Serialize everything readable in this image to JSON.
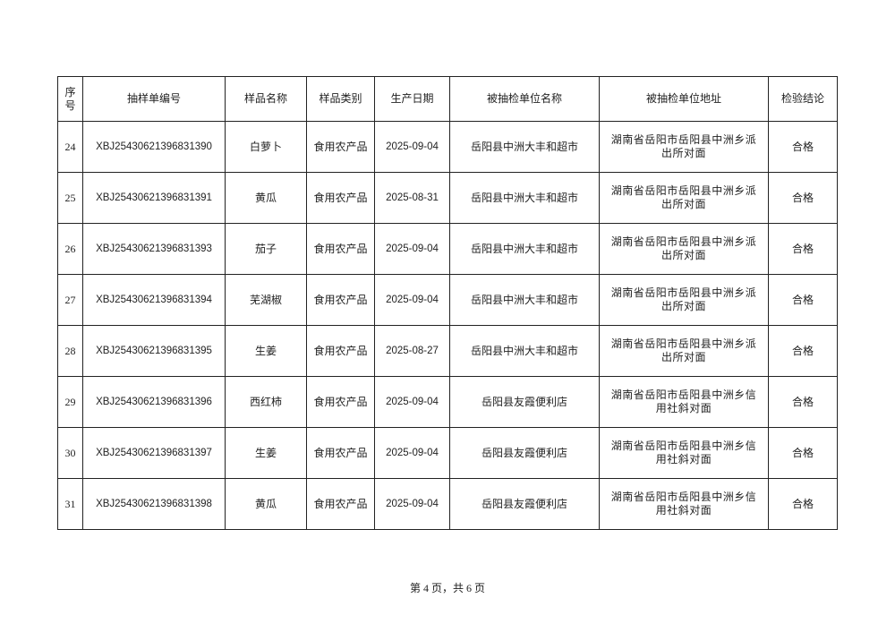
{
  "table": {
    "headers": [
      "序号",
      "抽样单编号",
      "样品名称",
      "样品类别",
      "生产日期",
      "被抽检单位名称",
      "被抽检单位地址",
      "检验结论"
    ],
    "rows": [
      [
        "24",
        "XBJ25430621396831390",
        "白萝卜",
        "食用农产品",
        "2025-09-04",
        "岳阳县中洲大丰和超市",
        "湖南省岳阳市岳阳县中洲乡派出所对面",
        "合格"
      ],
      [
        "25",
        "XBJ25430621396831391",
        "黄瓜",
        "食用农产品",
        "2025-08-31",
        "岳阳县中洲大丰和超市",
        "湖南省岳阳市岳阳县中洲乡派出所对面",
        "合格"
      ],
      [
        "26",
        "XBJ25430621396831393",
        "茄子",
        "食用农产品",
        "2025-09-04",
        "岳阳县中洲大丰和超市",
        "湖南省岳阳市岳阳县中洲乡派出所对面",
        "合格"
      ],
      [
        "27",
        "XBJ25430621396831394",
        "芜湖椒",
        "食用农产品",
        "2025-09-04",
        "岳阳县中洲大丰和超市",
        "湖南省岳阳市岳阳县中洲乡派出所对面",
        "合格"
      ],
      [
        "28",
        "XBJ25430621396831395",
        "生姜",
        "食用农产品",
        "2025-08-27",
        "岳阳县中洲大丰和超市",
        "湖南省岳阳市岳阳县中洲乡派出所对面",
        "合格"
      ],
      [
        "29",
        "XBJ25430621396831396",
        "西红柿",
        "食用农产品",
        "2025-09-04",
        "岳阳县友霞便利店",
        "湖南省岳阳市岳阳县中洲乡信用社斜对面",
        "合格"
      ],
      [
        "30",
        "XBJ25430621396831397",
        "生姜",
        "食用农产品",
        "2025-09-04",
        "岳阳县友霞便利店",
        "湖南省岳阳市岳阳县中洲乡信用社斜对面",
        "合格"
      ],
      [
        "31",
        "XBJ25430621396831398",
        "黄瓜",
        "食用农产品",
        "2025-09-04",
        "岳阳县友霞便利店",
        "湖南省岳阳市岳阳县中洲乡信用社斜对面",
        "合格"
      ]
    ]
  },
  "footer": {
    "page_text": "第 4 页，共 6 页"
  }
}
